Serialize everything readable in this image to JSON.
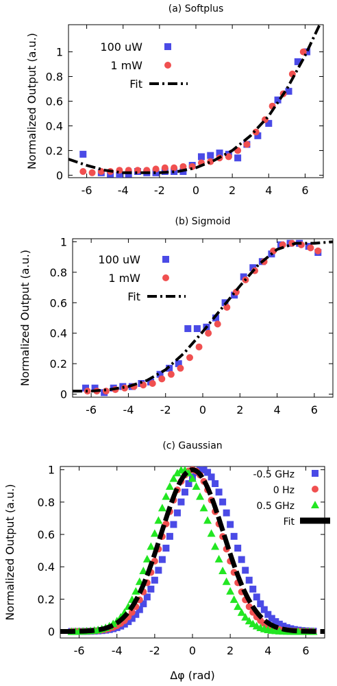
{
  "chart_data": [
    {
      "type": "scatter",
      "title": "(a) Softplus",
      "xlabel": "",
      "ylabel": "Normalized Output (a.u.)",
      "xlim": [
        -7,
        7
      ],
      "ylim": [
        -0.02,
        1.22
      ],
      "xticks": [
        "-6",
        "-4",
        "-2",
        "0",
        "2",
        "4",
        "6"
      ],
      "yticks": [
        "0",
        "0.2",
        "0.4",
        "0.6",
        "0.8",
        "1"
      ],
      "legend_position": "top-left",
      "series": [
        {
          "name": "100 uW",
          "marker": "square",
          "color": "#4a4ae6",
          "x": [
            -6.2,
            -5.2,
            -4.7,
            -4.2,
            -3.7,
            -3.2,
            -2.7,
            -2.2,
            -1.7,
            -1.2,
            -0.7,
            -0.2,
            0.3,
            0.8,
            1.3,
            1.8,
            2.3,
            2.8,
            3.4,
            4,
            4.5,
            5.1,
            5.6,
            6.1
          ],
          "y": [
            0.17,
            0.02,
            0.01,
            0.0,
            0.01,
            0.03,
            0.02,
            0.02,
            0.03,
            0.03,
            0.03,
            0.08,
            0.15,
            0.16,
            0.18,
            0.17,
            0.14,
            0.25,
            0.32,
            0.42,
            0.61,
            0.68,
            0.92,
            1.0
          ]
        },
        {
          "name": "1 mW",
          "marker": "circle",
          "color": "#f05050",
          "x": [
            -6.2,
            -5.7,
            -5.2,
            -4.7,
            -4.2,
            -3.7,
            -3.2,
            -2.7,
            -2.2,
            -1.7,
            -1.2,
            -0.7,
            -0.2,
            0.3,
            0.8,
            1.3,
            1.8,
            2.3,
            2.8,
            3.3,
            3.8,
            4.2,
            4.8,
            5.3,
            5.9
          ],
          "y": [
            0.03,
            0.02,
            0.03,
            0.03,
            0.04,
            0.04,
            0.04,
            0.04,
            0.05,
            0.06,
            0.06,
            0.07,
            0.07,
            0.1,
            0.11,
            0.14,
            0.15,
            0.2,
            0.25,
            0.35,
            0.45,
            0.56,
            0.66,
            0.82,
            1.0
          ]
        },
        {
          "name": "Fit",
          "kind": "fit",
          "color": "#000000",
          "style": "dash-dot",
          "x": [
            -7,
            -6,
            -5,
            -4,
            -3,
            -2,
            -1,
            0,
            1,
            2,
            3,
            4,
            5,
            6,
            6.8
          ],
          "y": [
            0.13,
            0.08,
            0.04,
            0.02,
            0.02,
            0.02,
            0.03,
            0.06,
            0.12,
            0.2,
            0.32,
            0.48,
            0.7,
            0.97,
            1.22
          ]
        }
      ]
    },
    {
      "type": "scatter",
      "title": "(b) Sigmoid",
      "xlabel": "",
      "ylabel": "Normalized Output (a.u.)",
      "xlim": [
        -7,
        7
      ],
      "ylim": [
        -0.02,
        1.02
      ],
      "xticks": [
        "-6",
        "-4",
        "-2",
        "0",
        "2",
        "4",
        "6"
      ],
      "yticks": [
        "0",
        "0.2",
        "0.4",
        "0.6",
        "0.8",
        "1"
      ],
      "legend_position": "top-left",
      "series": [
        {
          "name": "100 uW",
          "marker": "square",
          "color": "#4a4ae6",
          "x": [
            -6.3,
            -5.8,
            -5.3,
            -4.8,
            -4.3,
            -3.8,
            -3.3,
            -2.8,
            -2.3,
            -1.8,
            -1.3,
            -0.8,
            -0.3,
            0.2,
            0.7,
            1.2,
            1.7,
            2.2,
            2.7,
            3.2,
            3.7,
            4.2,
            4.7,
            5.2,
            5.7,
            6.2
          ],
          "y": [
            0.04,
            0.04,
            0.01,
            0.04,
            0.05,
            0.05,
            0.07,
            0.08,
            0.13,
            0.17,
            0.2,
            0.43,
            0.43,
            0.44,
            0.5,
            0.6,
            0.65,
            0.77,
            0.83,
            0.87,
            0.92,
            0.98,
            0.99,
            0.99,
            0.97,
            0.93
          ]
        },
        {
          "name": "1 mW",
          "marker": "circle",
          "color": "#f05050",
          "x": [
            -6.2,
            -5.7,
            -5.2,
            -4.7,
            -4.2,
            -3.7,
            -3.2,
            -2.7,
            -2.2,
            -1.7,
            -1.2,
            -0.7,
            -0.2,
            0.3,
            0.8,
            1.3,
            1.8,
            2.3,
            2.8,
            3.3,
            3.8,
            4.3,
            4.8,
            5.3,
            5.8,
            6.2
          ],
          "y": [
            0.02,
            0.02,
            0.02,
            0.03,
            0.04,
            0.05,
            0.06,
            0.07,
            0.1,
            0.13,
            0.17,
            0.24,
            0.31,
            0.4,
            0.46,
            0.57,
            0.67,
            0.75,
            0.81,
            0.87,
            0.94,
            0.98,
            0.99,
            0.98,
            0.96,
            0.94
          ]
        },
        {
          "name": "Fit",
          "kind": "fit",
          "color": "#000000",
          "style": "dash-dot",
          "x": [
            -7,
            -6,
            -5,
            -4,
            -3,
            -2,
            -1,
            0,
            1,
            2,
            3,
            4,
            5,
            6,
            7
          ],
          "y": [
            0.02,
            0.02,
            0.03,
            0.05,
            0.09,
            0.16,
            0.27,
            0.41,
            0.56,
            0.71,
            0.85,
            0.95,
            0.99,
            0.99,
            1.0
          ]
        }
      ]
    },
    {
      "type": "scatter",
      "title": "(c) Gaussian",
      "xlabel": "Δφ (rad)",
      "ylabel": "Normalized Output (a.u.)",
      "xlim": [
        -7,
        7
      ],
      "ylim": [
        -0.04,
        1.02
      ],
      "xticks": [
        "-6",
        "-4",
        "-2",
        "0",
        "2",
        "4",
        "6"
      ],
      "yticks": [
        "0",
        "0.2",
        "0.4",
        "0.6",
        "0.8",
        "1"
      ],
      "legend_position": "top-right",
      "series": [
        {
          "name": "-0.5 GHz",
          "marker": "square",
          "color": "#4a4ae6",
          "center": 0.5,
          "sigma": 1.65
        },
        {
          "name": "0 Hz",
          "marker": "circle",
          "color": "#f05050",
          "center": 0.0,
          "sigma": 1.55
        },
        {
          "name": "0.5 GHz",
          "marker": "triangle",
          "color": "#22e622",
          "center": -0.5,
          "sigma": 1.5
        },
        {
          "name": "Fit",
          "kind": "fit",
          "color": "#000000",
          "style": "dashed",
          "center": 0.0,
          "sigma": 1.65
        }
      ]
    }
  ]
}
